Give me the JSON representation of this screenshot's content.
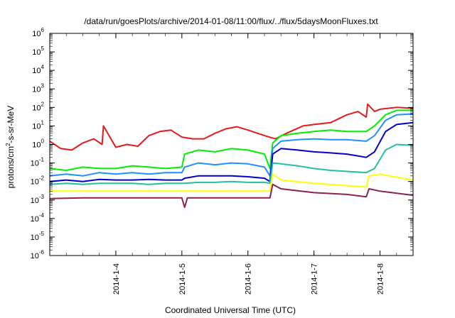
{
  "chart_data": {
    "type": "line",
    "title": "/data/run/goesPlots/archive/2014-01-08/11:00/flux/../flux/5daysMoonFluxes.txt",
    "xlabel": "Coordinated Universal Time (UTC)",
    "ylabel": "protons/cm2-s-sr-MeV",
    "ylabel_parts": {
      "before": "protons/cm",
      "sup": "2",
      "after": "-s-sr-MeV"
    },
    "x_range": [
      "2014-01-03T00:00",
      "2014-01-08T12:00"
    ],
    "y_log_scale": true,
    "ylim": [
      1e-06,
      1000000.0
    ],
    "x_ticks": [
      "2014-1-4",
      "2014-1-5",
      "2014-1-6",
      "2014-1-7",
      "2014-1-8"
    ],
    "y_ticks": [
      {
        "base": "10",
        "exp": "-6"
      },
      {
        "base": "10",
        "exp": "-5"
      },
      {
        "base": "10",
        "exp": "-4"
      },
      {
        "base": "10",
        "exp": "-3"
      },
      {
        "base": "10",
        "exp": "-2"
      },
      {
        "base": "10",
        "exp": "-1"
      },
      {
        "base": "10",
        "exp": "0"
      },
      {
        "base": "10",
        "exp": "1"
      },
      {
        "base": "10",
        "exp": "2"
      },
      {
        "base": "10",
        "exp": "3"
      },
      {
        "base": "10",
        "exp": "4"
      },
      {
        "base": "10",
        "exp": "5"
      },
      {
        "base": "10",
        "exp": "6"
      }
    ],
    "grid": false,
    "series": [
      {
        "color": "#e41a1c",
        "x": [
          "2014-01-03T00:00",
          "2014-01-03T04:00",
          "2014-01-03T08:00",
          "2014-01-03T12:00",
          "2014-01-03T16:00",
          "2014-01-03T19:00",
          "2014-01-03T19:30",
          "2014-01-04T00:00",
          "2014-01-04T04:00",
          "2014-01-04T08:00",
          "2014-01-04T12:00",
          "2014-01-04T16:00",
          "2014-01-04T20:00",
          "2014-01-05T00:00",
          "2014-01-05T04:00",
          "2014-01-05T08:00",
          "2014-01-05T12:00",
          "2014-01-05T16:00",
          "2014-01-05T20:00",
          "2014-01-06T00:00",
          "2014-01-06T06:00",
          "2014-01-06T10:00",
          "2014-01-06T14:00",
          "2014-01-06T20:00",
          "2014-01-07T00:00",
          "2014-01-07T06:00",
          "2014-01-07T12:00",
          "2014-01-07T16:00",
          "2014-01-07T19:00",
          "2014-01-07T19:30",
          "2014-01-07T22:00",
          "2014-01-08T00:00",
          "2014-01-08T06:00",
          "2014-01-08T12:00"
        ],
        "y": [
          1.5,
          0.6,
          0.5,
          1.2,
          2.0,
          1.0,
          10,
          0.7,
          1.0,
          0.8,
          3,
          5,
          6,
          2.5,
          2.0,
          2.0,
          4,
          7,
          9,
          6,
          3,
          2,
          4,
          10,
          12,
          15,
          40,
          60,
          30,
          150,
          60,
          80,
          100,
          90
        ]
      },
      {
        "color": "#00ee00",
        "x": [
          "2014-01-03T00:00",
          "2014-01-03T06:00",
          "2014-01-03T12:00",
          "2014-01-03T18:00",
          "2014-01-04T00:00",
          "2014-01-04T06:00",
          "2014-01-04T12:00",
          "2014-01-04T18:00",
          "2014-01-05T00:00",
          "2014-01-05T01:00",
          "2014-01-05T06:00",
          "2014-01-05T12:00",
          "2014-01-05T18:00",
          "2014-01-06T00:00",
          "2014-01-06T06:00",
          "2014-01-06T08:00",
          "2014-01-06T09:00",
          "2014-01-06T12:00",
          "2014-01-06T18:00",
          "2014-01-07T00:00",
          "2014-01-07T06:00",
          "2014-01-07T12:00",
          "2014-01-07T19:00",
          "2014-01-07T22:00",
          "2014-01-08T02:00",
          "2014-01-08T06:00",
          "2014-01-08T12:00"
        ],
        "y": [
          0.05,
          0.04,
          0.06,
          0.05,
          0.05,
          0.07,
          0.06,
          0.05,
          0.06,
          0.3,
          0.5,
          0.4,
          0.6,
          0.5,
          0.3,
          0.05,
          1.2,
          3,
          4,
          5,
          6,
          5,
          5,
          10,
          40,
          70,
          70
        ]
      },
      {
        "color": "#1e90ff",
        "x": [
          "2014-01-03T00:00",
          "2014-01-03T06:00",
          "2014-01-03T12:00",
          "2014-01-03T18:00",
          "2014-01-04T00:00",
          "2014-01-04T06:00",
          "2014-01-04T12:00",
          "2014-01-04T18:00",
          "2014-01-05T00:00",
          "2014-01-05T01:00",
          "2014-01-05T06:00",
          "2014-01-05T12:00",
          "2014-01-05T18:00",
          "2014-01-06T00:00",
          "2014-01-06T06:00",
          "2014-01-06T08:00",
          "2014-01-06T09:00",
          "2014-01-06T12:00",
          "2014-01-06T18:00",
          "2014-01-07T00:00",
          "2014-01-07T06:00",
          "2014-01-07T12:00",
          "2014-01-07T19:00",
          "2014-01-07T22:00",
          "2014-01-08T02:00",
          "2014-01-08T06:00",
          "2014-01-08T12:00"
        ],
        "y": [
          0.02,
          0.025,
          0.02,
          0.03,
          0.025,
          0.03,
          0.025,
          0.03,
          0.03,
          0.06,
          0.1,
          0.08,
          0.1,
          0.09,
          0.06,
          0.02,
          0.6,
          1.5,
          1.8,
          2,
          1.8,
          1.8,
          1.5,
          3,
          20,
          40,
          45
        ]
      },
      {
        "color": "#0000cd",
        "x": [
          "2014-01-03T00:00",
          "2014-01-03T06:00",
          "2014-01-03T12:00",
          "2014-01-03T18:00",
          "2014-01-04T00:00",
          "2014-01-04T06:00",
          "2014-01-04T12:00",
          "2014-01-04T18:00",
          "2014-01-05T00:00",
          "2014-01-05T01:00",
          "2014-01-05T06:00",
          "2014-01-05T12:00",
          "2014-01-05T18:00",
          "2014-01-06T00:00",
          "2014-01-06T06:00",
          "2014-01-06T08:00",
          "2014-01-06T09:00",
          "2014-01-06T12:00",
          "2014-01-06T18:00",
          "2014-01-07T00:00",
          "2014-01-07T06:00",
          "2014-01-07T12:00",
          "2014-01-07T19:00",
          "2014-01-07T22:00",
          "2014-01-08T02:00",
          "2014-01-08T06:00",
          "2014-01-08T12:00"
        ],
        "y": [
          0.01,
          0.012,
          0.01,
          0.013,
          0.012,
          0.012,
          0.013,
          0.012,
          0.012,
          0.015,
          0.02,
          0.02,
          0.02,
          0.018,
          0.015,
          0.01,
          0.3,
          0.6,
          0.5,
          0.4,
          0.35,
          0.3,
          0.2,
          0.4,
          5,
          12,
          15
        ]
      },
      {
        "color": "#20c0a0",
        "x": [
          "2014-01-03T00:00",
          "2014-01-03T06:00",
          "2014-01-03T12:00",
          "2014-01-03T18:00",
          "2014-01-04T00:00",
          "2014-01-04T06:00",
          "2014-01-04T12:00",
          "2014-01-04T18:00",
          "2014-01-05T00:00",
          "2014-01-05T01:00",
          "2014-01-05T06:00",
          "2014-01-05T12:00",
          "2014-01-05T18:00",
          "2014-01-06T00:00",
          "2014-01-06T06:00",
          "2014-01-06T08:00",
          "2014-01-06T09:00",
          "2014-01-06T12:00",
          "2014-01-06T18:00",
          "2014-01-07T00:00",
          "2014-01-07T06:00",
          "2014-01-07T12:00",
          "2014-01-07T19:00",
          "2014-01-07T22:00",
          "2014-01-08T02:00",
          "2014-01-08T06:00",
          "2014-01-08T12:00"
        ],
        "y": [
          0.007,
          0.008,
          0.007,
          0.008,
          0.008,
          0.008,
          0.007,
          0.008,
          0.008,
          0.008,
          0.009,
          0.009,
          0.01,
          0.009,
          0.009,
          0.008,
          0.1,
          0.09,
          0.07,
          0.05,
          0.04,
          0.035,
          0.03,
          0.05,
          0.5,
          1.0,
          0.9
        ]
      },
      {
        "color": "#ffff00",
        "x": [
          "2014-01-03T00:00",
          "2014-01-03T12:00",
          "2014-01-04T00:00",
          "2014-01-04T12:00",
          "2014-01-05T00:00",
          "2014-01-05T12:00",
          "2014-01-06T00:00",
          "2014-01-06T08:00",
          "2014-01-06T09:00",
          "2014-01-06T12:00",
          "2014-01-07T00:00",
          "2014-01-07T12:00",
          "2014-01-07T19:00",
          "2014-01-07T20:00",
          "2014-01-08T00:00",
          "2014-01-08T12:00"
        ],
        "y": [
          0.003,
          0.003,
          0.003,
          0.003,
          0.003,
          0.003,
          0.003,
          0.003,
          0.025,
          0.012,
          0.008,
          0.006,
          0.005,
          0.02,
          0.025,
          0.012
        ]
      },
      {
        "color": "#8b2252",
        "x": [
          "2014-01-03T00:00",
          "2014-01-03T12:00",
          "2014-01-04T00:00",
          "2014-01-04T12:00",
          "2014-01-05T00:00",
          "2014-01-05T01:00",
          "2014-01-05T02:00",
          "2014-01-05T12:00",
          "2014-01-06T00:00",
          "2014-01-06T08:00",
          "2014-01-06T09:00",
          "2014-01-06T12:00",
          "2014-01-07T00:00",
          "2014-01-07T12:00",
          "2014-01-07T19:00",
          "2014-01-07T20:00",
          "2014-01-08T00:00",
          "2014-01-08T12:00"
        ],
        "y": [
          0.0012,
          0.0013,
          0.0013,
          0.0013,
          0.0013,
          0.0004,
          0.0013,
          0.0013,
          0.0013,
          0.0013,
          0.007,
          0.004,
          0.0025,
          0.002,
          0.0015,
          0.004,
          0.003,
          0.0018
        ]
      }
    ]
  }
}
